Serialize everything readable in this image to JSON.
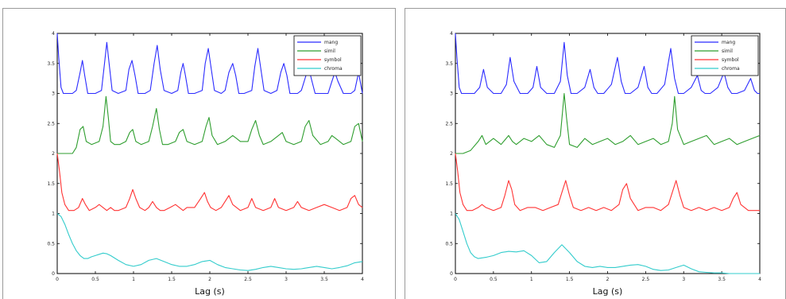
{
  "chart_data": [
    {
      "type": "line",
      "title": "",
      "xlabel": "Lag (s)",
      "ylabel": "",
      "xlim": [
        0,
        4
      ],
      "ylim": [
        0,
        4
      ],
      "xticks": [
        "0",
        "0.5",
        "1",
        "1.5",
        "2",
        "2.5",
        "3",
        "3.5",
        "4"
      ],
      "yticks": [
        "0",
        "0.5",
        "1",
        "1.5",
        "2",
        "2.5",
        "3",
        "3.5",
        "4"
      ],
      "grid": false,
      "legend": "top-right",
      "series": [
        {
          "name": "mang",
          "color": "#2b2bff",
          "base": 3.0,
          "x": [
            0,
            0.02,
            0.05,
            0.08,
            0.12,
            0.2,
            0.25,
            0.3,
            0.33,
            0.36,
            0.4,
            0.5,
            0.58,
            0.62,
            0.65,
            0.68,
            0.72,
            0.8,
            0.9,
            0.94,
            0.98,
            1.02,
            1.06,
            1.15,
            1.22,
            1.27,
            1.31,
            1.35,
            1.4,
            1.5,
            1.58,
            1.62,
            1.65,
            1.68,
            1.72,
            1.8,
            1.9,
            1.94,
            1.98,
            2.02,
            2.06,
            2.15,
            2.2,
            2.25,
            2.3,
            2.34,
            2.38,
            2.45,
            2.55,
            2.59,
            2.63,
            2.67,
            2.71,
            2.8,
            2.88,
            2.93,
            2.97,
            3.01,
            3.05,
            3.15,
            3.2,
            3.26,
            3.3,
            3.34,
            3.38,
            3.5,
            3.55,
            3.6,
            3.64,
            3.68,
            3.75,
            3.85,
            3.9,
            3.95,
            4.0
          ],
          "y": [
            4.0,
            3.6,
            3.1,
            3.0,
            3.0,
            3.0,
            3.05,
            3.35,
            3.55,
            3.3,
            3.0,
            3.0,
            3.05,
            3.5,
            3.85,
            3.5,
            3.05,
            3.0,
            3.05,
            3.4,
            3.55,
            3.3,
            3.0,
            3.0,
            3.05,
            3.5,
            3.8,
            3.4,
            3.05,
            3.0,
            3.05,
            3.35,
            3.5,
            3.3,
            3.0,
            3.0,
            3.05,
            3.5,
            3.75,
            3.4,
            3.05,
            3.0,
            3.05,
            3.35,
            3.5,
            3.3,
            3.0,
            3.0,
            3.05,
            3.45,
            3.75,
            3.4,
            3.05,
            3.0,
            3.05,
            3.35,
            3.5,
            3.3,
            3.0,
            3.0,
            3.05,
            3.3,
            3.4,
            3.2,
            3.0,
            3.0,
            3.0,
            3.2,
            3.35,
            3.2,
            3.0,
            3.0,
            3.05,
            3.35,
            3.0
          ]
        },
        {
          "name": "simil",
          "color": "#2f9e2f",
          "base": 2.0,
          "x": [
            0,
            0.1,
            0.2,
            0.25,
            0.3,
            0.34,
            0.38,
            0.45,
            0.55,
            0.6,
            0.64,
            0.67,
            0.7,
            0.75,
            0.82,
            0.9,
            0.95,
            0.99,
            1.03,
            1.1,
            1.2,
            1.25,
            1.3,
            1.34,
            1.38,
            1.45,
            1.55,
            1.6,
            1.65,
            1.7,
            1.8,
            1.9,
            1.95,
            1.99,
            2.03,
            2.1,
            2.2,
            2.3,
            2.35,
            2.4,
            2.5,
            2.55,
            2.6,
            2.65,
            2.7,
            2.8,
            2.9,
            2.95,
            3.0,
            3.1,
            3.2,
            3.25,
            3.3,
            3.35,
            3.45,
            3.55,
            3.6,
            3.65,
            3.75,
            3.85,
            3.9,
            3.95,
            4.0
          ],
          "y": [
            2.0,
            2.0,
            2.0,
            2.1,
            2.4,
            2.45,
            2.2,
            2.15,
            2.2,
            2.45,
            2.95,
            2.6,
            2.2,
            2.15,
            2.15,
            2.2,
            2.35,
            2.4,
            2.2,
            2.15,
            2.2,
            2.45,
            2.75,
            2.4,
            2.15,
            2.15,
            2.2,
            2.35,
            2.4,
            2.2,
            2.15,
            2.2,
            2.45,
            2.6,
            2.3,
            2.15,
            2.2,
            2.3,
            2.25,
            2.2,
            2.2,
            2.4,
            2.55,
            2.3,
            2.15,
            2.2,
            2.3,
            2.35,
            2.2,
            2.15,
            2.2,
            2.45,
            2.55,
            2.3,
            2.15,
            2.2,
            2.3,
            2.25,
            2.15,
            2.2,
            2.45,
            2.5,
            2.2
          ]
        },
        {
          "name": "symbol",
          "color": "#ff3333",
          "base": 1.0,
          "x": [
            0,
            0.03,
            0.06,
            0.1,
            0.15,
            0.22,
            0.28,
            0.33,
            0.37,
            0.42,
            0.5,
            0.55,
            0.6,
            0.65,
            0.7,
            0.75,
            0.8,
            0.9,
            0.95,
            0.99,
            1.03,
            1.08,
            1.15,
            1.2,
            1.25,
            1.3,
            1.35,
            1.4,
            1.48,
            1.55,
            1.6,
            1.65,
            1.7,
            1.8,
            1.88,
            1.93,
            1.97,
            2.01,
            2.08,
            2.15,
            2.2,
            2.25,
            2.3,
            2.4,
            2.5,
            2.55,
            2.6,
            2.7,
            2.8,
            2.85,
            2.9,
            3.0,
            3.1,
            3.15,
            3.2,
            3.3,
            3.4,
            3.5,
            3.6,
            3.7,
            3.8,
            3.85,
            3.9,
            3.95,
            4.0
          ],
          "y": [
            2.0,
            1.7,
            1.35,
            1.15,
            1.05,
            1.05,
            1.1,
            1.25,
            1.15,
            1.05,
            1.1,
            1.15,
            1.1,
            1.05,
            1.1,
            1.05,
            1.05,
            1.1,
            1.25,
            1.4,
            1.25,
            1.1,
            1.05,
            1.1,
            1.2,
            1.1,
            1.05,
            1.05,
            1.1,
            1.15,
            1.1,
            1.05,
            1.1,
            1.1,
            1.25,
            1.35,
            1.2,
            1.1,
            1.05,
            1.1,
            1.2,
            1.3,
            1.15,
            1.05,
            1.1,
            1.25,
            1.1,
            1.05,
            1.1,
            1.25,
            1.1,
            1.05,
            1.1,
            1.2,
            1.1,
            1.05,
            1.1,
            1.15,
            1.1,
            1.05,
            1.1,
            1.25,
            1.3,
            1.15,
            1.1
          ]
        },
        {
          "name": "chroma",
          "color": "#33cccc",
          "base": 0.0,
          "x": [
            0,
            0.05,
            0.1,
            0.15,
            0.2,
            0.25,
            0.3,
            0.35,
            0.4,
            0.45,
            0.5,
            0.55,
            0.6,
            0.65,
            0.7,
            0.8,
            0.9,
            1.0,
            1.1,
            1.2,
            1.3,
            1.4,
            1.5,
            1.6,
            1.7,
            1.8,
            1.9,
            2.0,
            2.1,
            2.2,
            2.3,
            2.4,
            2.5,
            2.6,
            2.7,
            2.8,
            2.9,
            3.0,
            3.1,
            3.2,
            3.3,
            3.4,
            3.5,
            3.6,
            3.7,
            3.8,
            3.9,
            4.0
          ],
          "y": [
            1.0,
            0.95,
            0.82,
            0.65,
            0.5,
            0.38,
            0.3,
            0.25,
            0.25,
            0.28,
            0.3,
            0.32,
            0.34,
            0.33,
            0.3,
            0.22,
            0.15,
            0.12,
            0.15,
            0.22,
            0.25,
            0.2,
            0.15,
            0.12,
            0.12,
            0.15,
            0.2,
            0.22,
            0.15,
            0.1,
            0.08,
            0.06,
            0.05,
            0.07,
            0.1,
            0.12,
            0.1,
            0.08,
            0.07,
            0.08,
            0.1,
            0.12,
            0.1,
            0.08,
            0.1,
            0.13,
            0.18,
            0.2
          ]
        }
      ],
      "legend_entries": [
        "mang",
        "simil",
        "symbol",
        "chroma"
      ]
    },
    {
      "type": "line",
      "title": "",
      "xlabel": "Lag (s)",
      "ylabel": "",
      "xlim": [
        0,
        4
      ],
      "ylim": [
        0,
        4
      ],
      "xticks": [
        "0",
        "0.5",
        "1",
        "1.5",
        "2",
        "2.5",
        "3",
        "3.5",
        "4"
      ],
      "yticks": [
        "0",
        "0.5",
        "1",
        "1.5",
        "2",
        "2.5",
        "3",
        "3.5",
        "4"
      ],
      "grid": false,
      "legend": "top-right",
      "series": [
        {
          "name": "mang",
          "color": "#2b2bff",
          "base": 3.0,
          "x": [
            0,
            0.02,
            0.05,
            0.08,
            0.15,
            0.25,
            0.32,
            0.37,
            0.42,
            0.5,
            0.6,
            0.67,
            0.72,
            0.77,
            0.85,
            0.95,
            1.02,
            1.07,
            1.12,
            1.2,
            1.3,
            1.38,
            1.43,
            1.47,
            1.52,
            1.6,
            1.7,
            1.77,
            1.82,
            1.87,
            1.95,
            2.05,
            2.13,
            2.18,
            2.23,
            2.3,
            2.4,
            2.48,
            2.53,
            2.58,
            2.65,
            2.75,
            2.83,
            2.88,
            2.93,
            3.0,
            3.1,
            3.18,
            3.23,
            3.28,
            3.35,
            3.45,
            3.53,
            3.58,
            3.63,
            3.7,
            3.8,
            3.88,
            3.93,
            3.97,
            4.0
          ],
          "y": [
            4.0,
            3.6,
            3.1,
            3.0,
            3.0,
            3.0,
            3.1,
            3.4,
            3.1,
            3.0,
            3.0,
            3.15,
            3.6,
            3.2,
            3.0,
            3.0,
            3.1,
            3.45,
            3.1,
            3.0,
            3.0,
            3.2,
            3.85,
            3.3,
            3.0,
            3.0,
            3.1,
            3.4,
            3.1,
            3.0,
            3.0,
            3.15,
            3.6,
            3.2,
            3.0,
            3.0,
            3.1,
            3.45,
            3.1,
            3.0,
            3.0,
            3.15,
            3.75,
            3.25,
            3.0,
            3.0,
            3.1,
            3.3,
            3.05,
            3.0,
            3.0,
            3.1,
            3.35,
            3.1,
            3.0,
            3.0,
            3.05,
            3.25,
            3.05,
            3.0,
            3.0
          ]
        },
        {
          "name": "simil",
          "color": "#2f9e2f",
          "base": 2.0,
          "x": [
            0,
            0.1,
            0.2,
            0.3,
            0.35,
            0.4,
            0.5,
            0.6,
            0.7,
            0.75,
            0.8,
            0.9,
            1.0,
            1.1,
            1.2,
            1.3,
            1.38,
            1.43,
            1.46,
            1.5,
            1.6,
            1.7,
            1.8,
            1.9,
            2.0,
            2.1,
            2.2,
            2.3,
            2.4,
            2.5,
            2.6,
            2.7,
            2.8,
            2.85,
            2.88,
            2.92,
            3.0,
            3.1,
            3.2,
            3.3,
            3.4,
            3.5,
            3.6,
            3.7,
            3.8,
            3.9,
            4.0
          ],
          "y": [
            2.0,
            2.0,
            2.05,
            2.2,
            2.3,
            2.15,
            2.25,
            2.15,
            2.3,
            2.2,
            2.15,
            2.25,
            2.2,
            2.3,
            2.15,
            2.1,
            2.3,
            3.0,
            2.6,
            2.15,
            2.1,
            2.25,
            2.15,
            2.2,
            2.25,
            2.15,
            2.2,
            2.3,
            2.15,
            2.2,
            2.25,
            2.15,
            2.2,
            2.5,
            2.95,
            2.4,
            2.15,
            2.2,
            2.25,
            2.3,
            2.15,
            2.2,
            2.25,
            2.15,
            2.2,
            2.25,
            2.3
          ]
        },
        {
          "name": "symbol",
          "color": "#ff3333",
          "base": 1.0,
          "x": [
            0,
            0.03,
            0.06,
            0.1,
            0.15,
            0.22,
            0.3,
            0.35,
            0.4,
            0.5,
            0.6,
            0.65,
            0.7,
            0.74,
            0.78,
            0.85,
            0.95,
            1.05,
            1.15,
            1.25,
            1.35,
            1.4,
            1.45,
            1.5,
            1.55,
            1.65,
            1.75,
            1.85,
            1.95,
            2.05,
            2.15,
            2.2,
            2.25,
            2.3,
            2.4,
            2.5,
            2.6,
            2.7,
            2.8,
            2.85,
            2.9,
            2.95,
            3.0,
            3.1,
            3.2,
            3.3,
            3.4,
            3.5,
            3.6,
            3.65,
            3.7,
            3.75,
            3.85,
            3.95,
            4.0
          ],
          "y": [
            2.0,
            1.7,
            1.35,
            1.15,
            1.05,
            1.05,
            1.1,
            1.15,
            1.1,
            1.05,
            1.1,
            1.3,
            1.55,
            1.4,
            1.15,
            1.05,
            1.1,
            1.1,
            1.05,
            1.1,
            1.15,
            1.35,
            1.55,
            1.3,
            1.1,
            1.05,
            1.1,
            1.05,
            1.1,
            1.05,
            1.15,
            1.4,
            1.5,
            1.25,
            1.05,
            1.1,
            1.1,
            1.05,
            1.15,
            1.35,
            1.55,
            1.3,
            1.1,
            1.05,
            1.1,
            1.05,
            1.1,
            1.05,
            1.1,
            1.25,
            1.35,
            1.15,
            1.05,
            1.05,
            1.05
          ]
        },
        {
          "name": "chroma",
          "color": "#33cccc",
          "base": 0.0,
          "x": [
            0,
            0.05,
            0.1,
            0.15,
            0.2,
            0.25,
            0.3,
            0.4,
            0.5,
            0.6,
            0.7,
            0.8,
            0.9,
            1.0,
            1.1,
            1.2,
            1.3,
            1.4,
            1.5,
            1.6,
            1.7,
            1.8,
            1.9,
            2.0,
            2.1,
            2.2,
            2.3,
            2.4,
            2.5,
            2.6,
            2.7,
            2.8,
            2.9,
            3.0,
            3.1,
            3.2,
            3.3,
            3.4,
            3.5,
            3.6,
            3.7,
            3.8,
            3.9,
            4.0
          ],
          "y": [
            1.0,
            0.9,
            0.7,
            0.5,
            0.35,
            0.28,
            0.25,
            0.27,
            0.3,
            0.35,
            0.37,
            0.36,
            0.38,
            0.3,
            0.18,
            0.2,
            0.35,
            0.48,
            0.35,
            0.2,
            0.12,
            0.1,
            0.12,
            0.1,
            0.1,
            0.12,
            0.14,
            0.15,
            0.12,
            0.07,
            0.05,
            0.06,
            0.1,
            0.14,
            0.08,
            0.03,
            0.02,
            0.01,
            0.01,
            0.0,
            0.0,
            0.0,
            0.0,
            0.0
          ]
        }
      ],
      "legend_entries": [
        "mang",
        "simil",
        "symbol",
        "chroma"
      ]
    }
  ]
}
